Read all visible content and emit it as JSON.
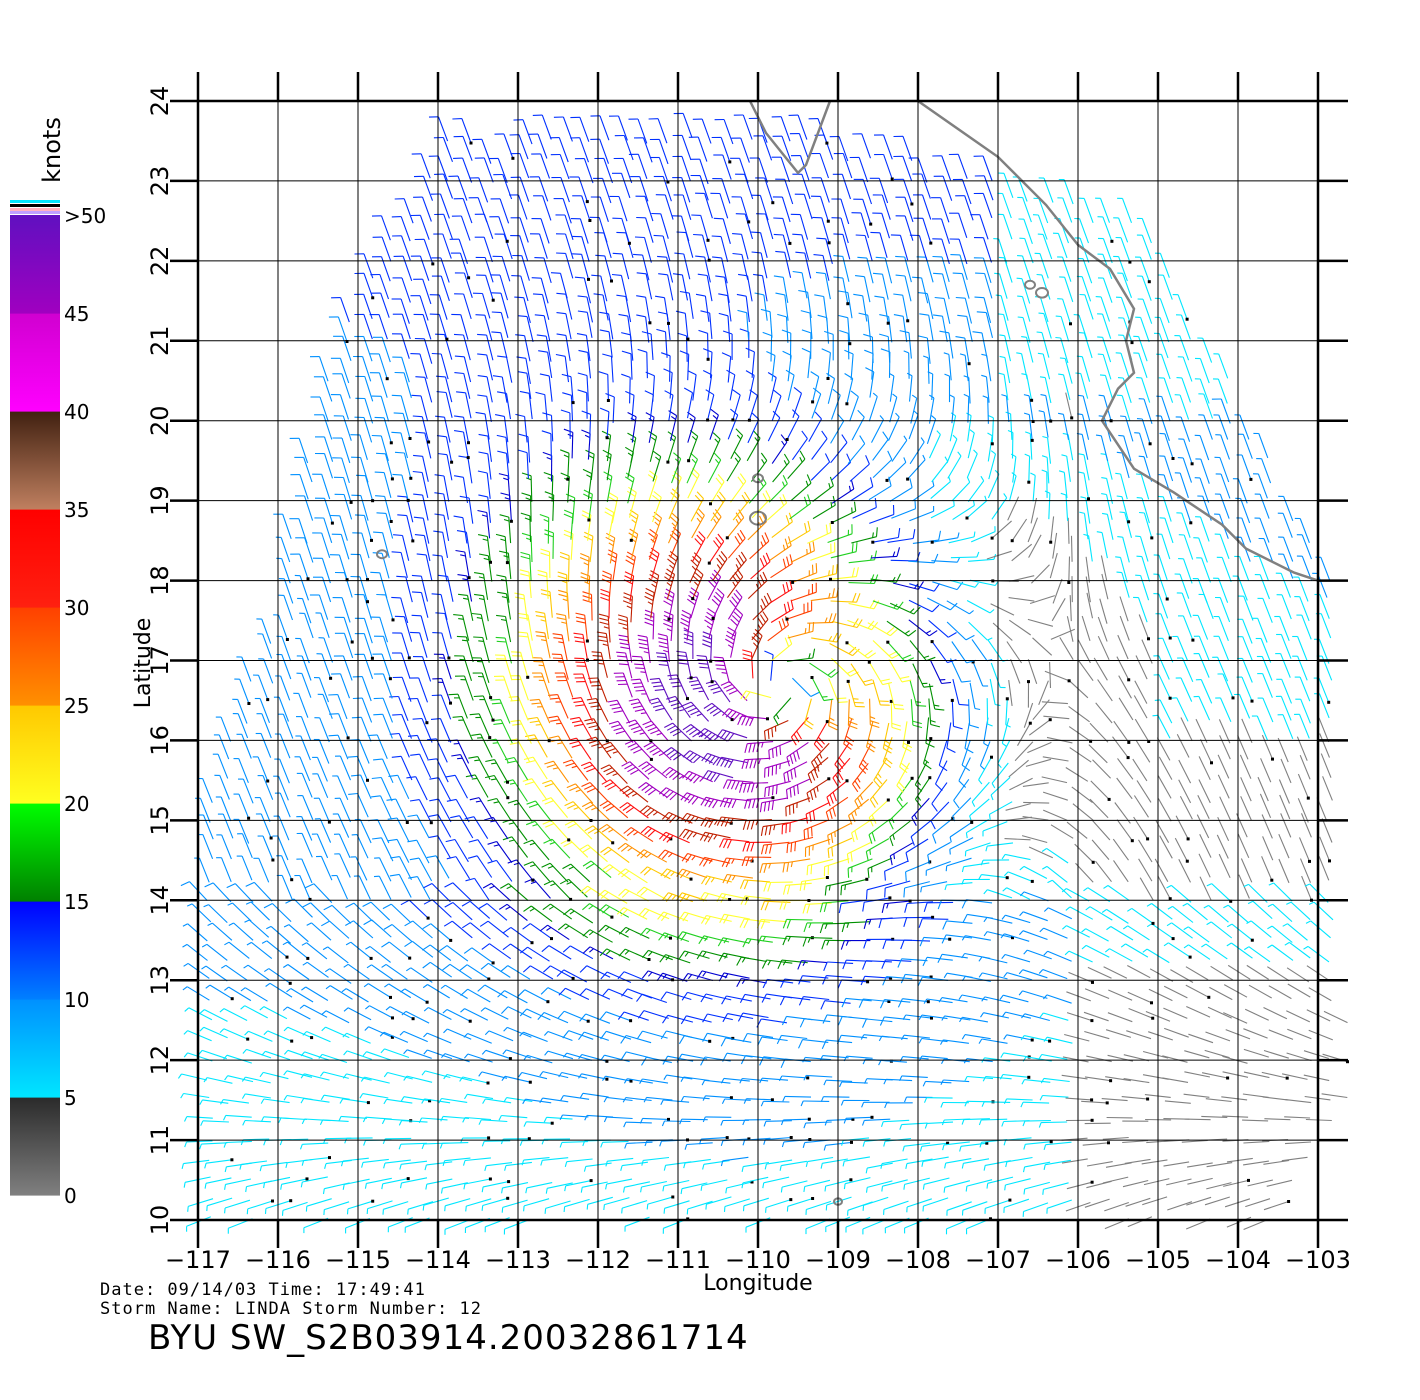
{
  "chart_data": {
    "type": "wind-barb-map",
    "xlabel": "Longitude",
    "ylabel": "Latitude",
    "xlim": [
      -117,
      -103
    ],
    "ylim": [
      10,
      24
    ],
    "x_ticks": [
      "−117",
      "−116",
      "−115",
      "−114",
      "−113",
      "−112",
      "−111",
      "−110",
      "−109",
      "−108",
      "−107",
      "−106",
      "−105",
      "−104",
      "−103"
    ],
    "y_ticks": [
      "10",
      "11",
      "12",
      "13",
      "14",
      "15",
      "16",
      "17",
      "18",
      "19",
      "20",
      "21",
      "22",
      "23",
      "24"
    ],
    "grid": true,
    "colorbar": {
      "title": "knots",
      "position": "left",
      "labels": [
        "0",
        "5",
        "10",
        "15",
        "20",
        "25",
        "30",
        "35",
        "40",
        "45",
        ">50"
      ],
      "bands": [
        {
          "from": 0,
          "to": 5,
          "colors": [
            "#808080",
            "#2a2a2a"
          ]
        },
        {
          "from": 5,
          "to": 10,
          "colors": [
            "#00e6ff",
            "#0090ff"
          ]
        },
        {
          "from": 10,
          "to": 15,
          "colors": [
            "#0080ff",
            "#0000ff"
          ]
        },
        {
          "from": 15,
          "to": 20,
          "colors": [
            "#008000",
            "#00ff00"
          ]
        },
        {
          "from": 20,
          "to": 25,
          "colors": [
            "#ffff20",
            "#ffc800"
          ]
        },
        {
          "from": 25,
          "to": 30,
          "colors": [
            "#ff9000",
            "#ff4000"
          ]
        },
        {
          "from": 30,
          "to": 35,
          "colors": [
            "#ff2010",
            "#ff0000"
          ]
        },
        {
          "from": 35,
          "to": 40,
          "colors": [
            "#c08060",
            "#402010"
          ]
        },
        {
          "from": 40,
          "to": 45,
          "colors": [
            "#ff00ff",
            "#d000d0"
          ]
        },
        {
          "from": 45,
          "to": 50,
          "colors": [
            "#a000c0",
            "#6010c0"
          ]
        }
      ]
    },
    "storm_center": {
      "lon": -109.8,
      "lat": 16.7
    },
    "max_wind_kt": 50,
    "coastline_color": "#808080"
  },
  "footer": {
    "date_line": "Date: 09/14/03   Time: 17:49:41",
    "storm_line": "Storm Name: LINDA   Storm Number: 12",
    "id_line": "BYU SW_S2B03914.20032861714"
  }
}
